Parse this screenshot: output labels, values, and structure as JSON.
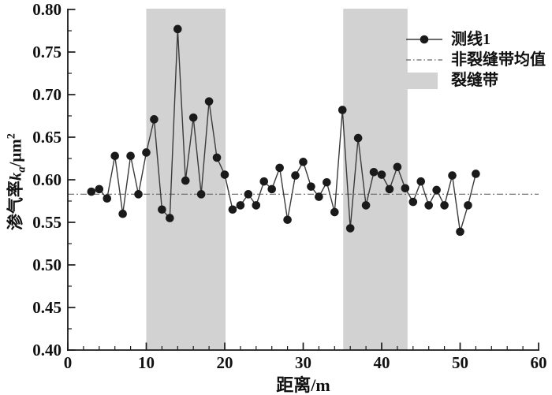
{
  "figure": {
    "xlabel": "距离/m",
    "ylabel_parts": {
      "prefix": "渗气率",
      "symbol": "k",
      "subscript": "a",
      "unit": "/μm",
      "superscript": "2"
    }
  },
  "legend": {
    "items": [
      {
        "label": "测线1",
        "marker": "line-dot"
      },
      {
        "label": "非裂缝带均值",
        "marker": "dash-dot-line"
      },
      {
        "label": "裂缝带",
        "marker": "gray-band"
      }
    ]
  },
  "chart_data": {
    "type": "line",
    "title": "",
    "xlabel": "距离/m",
    "ylabel": "渗气率ka/μm²",
    "xlim": [
      0,
      60
    ],
    "ylim": [
      0.4,
      0.8
    ],
    "x_major_tick_step": 10,
    "x_minor_tick_step": 2,
    "y_major_tick_step": 0.05,
    "y_minor_tick_step": 0.025,
    "grid": false,
    "legend_position": "top-right",
    "series": [
      {
        "name": "测线1",
        "x": [
          3,
          4,
          5,
          6,
          7,
          8,
          9,
          10,
          11,
          12,
          13,
          14,
          15,
          16,
          17,
          18,
          19,
          20,
          21,
          22,
          23,
          24,
          25,
          26,
          27,
          28,
          29,
          30,
          31,
          32,
          33,
          34,
          35,
          36,
          37,
          38,
          39,
          40,
          41,
          42,
          43,
          44,
          45,
          46,
          47,
          48,
          49,
          50,
          51,
          52
        ],
        "y": [
          0.586,
          0.589,
          0.578,
          0.628,
          0.56,
          0.628,
          0.583,
          0.632,
          0.671,
          0.565,
          0.555,
          0.777,
          0.599,
          0.673,
          0.583,
          0.692,
          0.626,
          0.606,
          0.565,
          0.57,
          0.583,
          0.57,
          0.598,
          0.589,
          0.614,
          0.553,
          0.605,
          0.621,
          0.592,
          0.58,
          0.597,
          0.562,
          0.682,
          0.543,
          0.649,
          0.57,
          0.609,
          0.606,
          0.589,
          0.615,
          0.59,
          0.574,
          0.598,
          0.57,
          0.588,
          0.57,
          0.605,
          0.539,
          0.57,
          0.607
        ]
      }
    ],
    "mean_line": {
      "name": "非裂缝带均值",
      "value": 0.583
    },
    "bands": {
      "name": "裂缝带",
      "ranges": [
        [
          10.0,
          20.1
        ],
        [
          35.1,
          43.3
        ]
      ]
    },
    "colors": {
      "marker": "#1a1a1a",
      "line": "#3a3a3a",
      "band": "#d2d2d2",
      "mean_line": "#666666",
      "axis": "#1a1a1a",
      "text": "#111111"
    }
  }
}
